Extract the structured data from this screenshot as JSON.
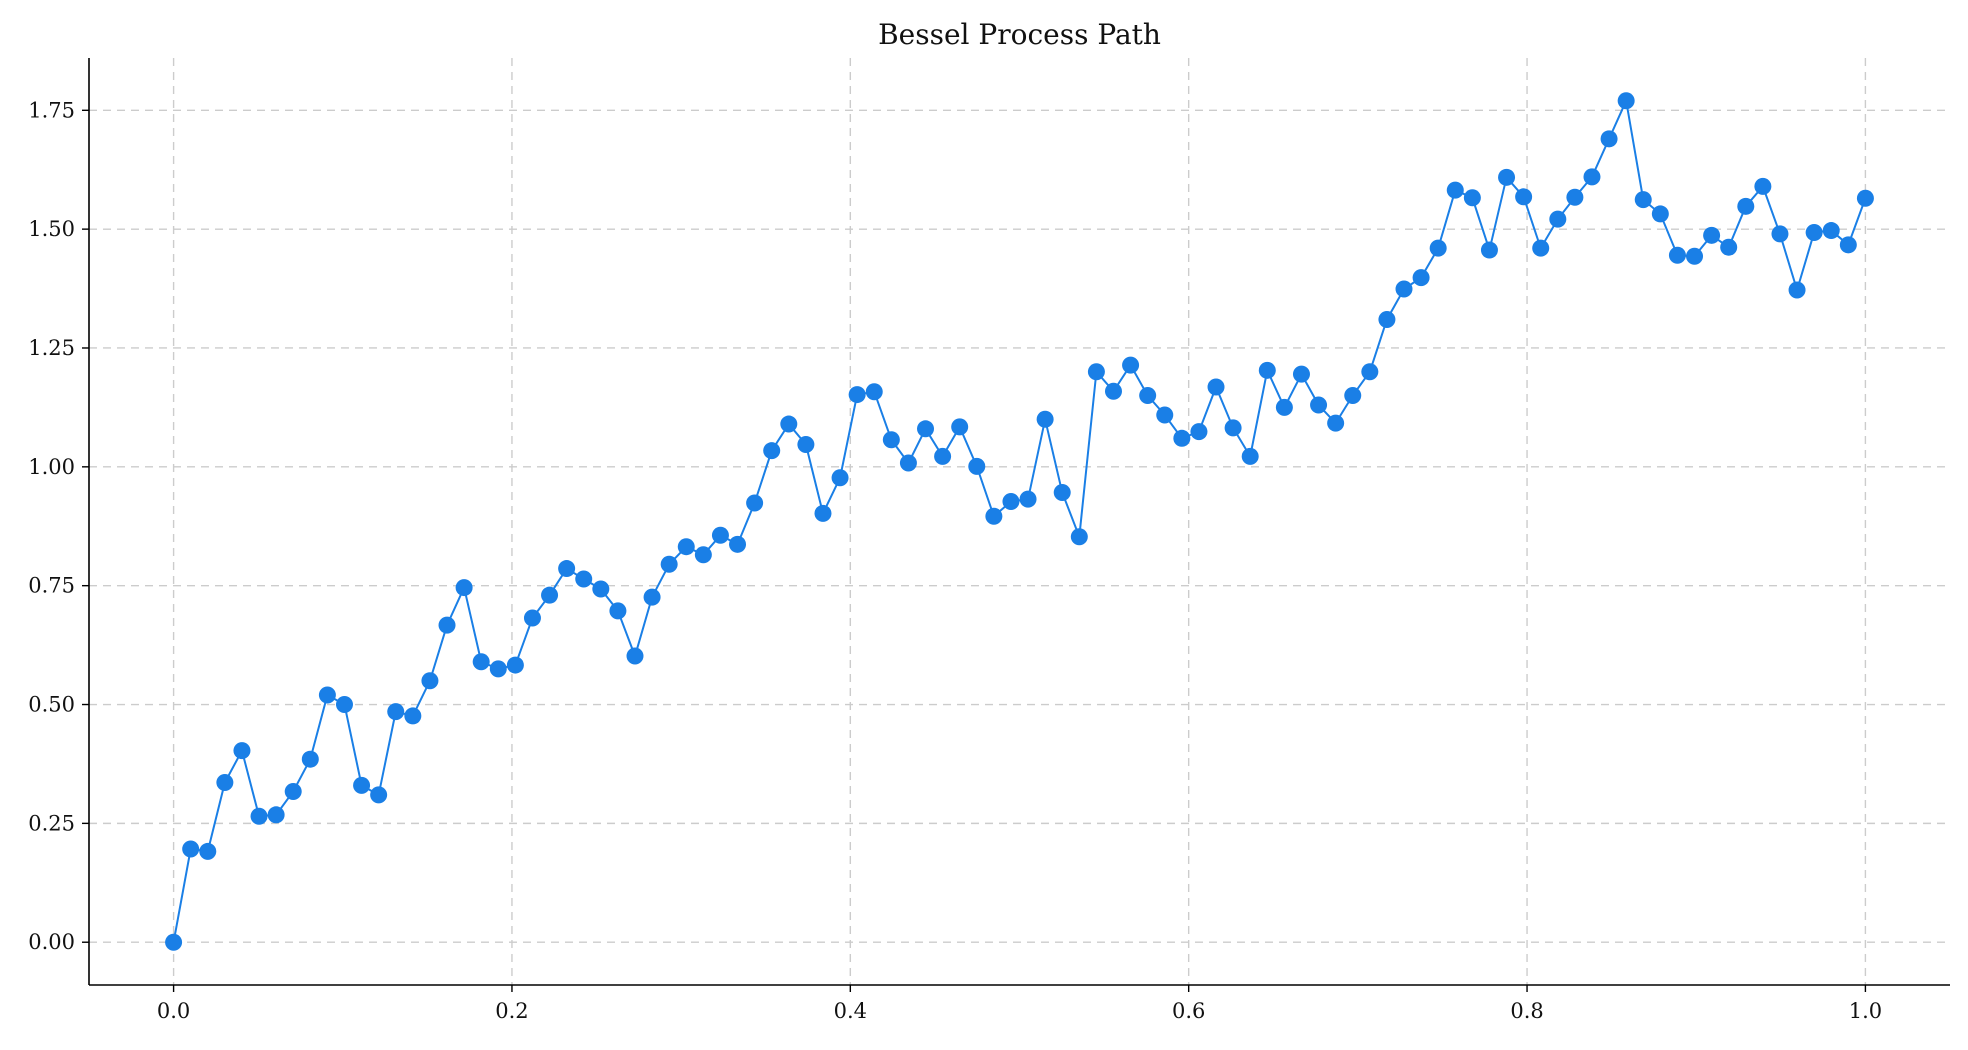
{
  "chart_data": {
    "type": "line",
    "title": "Bessel Process Path",
    "xlabel": "",
    "ylabel": "",
    "xlim": [
      -0.05,
      1.05
    ],
    "ylim": [
      -0.09,
      1.86
    ],
    "grid": true,
    "legend": "none",
    "x_ticks": [
      {
        "value": 0.0,
        "label": "0.0"
      },
      {
        "value": 0.2,
        "label": "0.2"
      },
      {
        "value": 0.4,
        "label": "0.4"
      },
      {
        "value": 0.6,
        "label": "0.6"
      },
      {
        "value": 0.8,
        "label": "0.8"
      },
      {
        "value": 1.0,
        "label": "1.0"
      }
    ],
    "y_ticks": [
      {
        "value": 0.0,
        "label": "0.00"
      },
      {
        "value": 0.25,
        "label": "0.25"
      },
      {
        "value": 0.5,
        "label": "0.50"
      },
      {
        "value": 0.75,
        "label": "0.75"
      },
      {
        "value": 1.0,
        "label": "1.00"
      },
      {
        "value": 1.25,
        "label": "1.25"
      },
      {
        "value": 1.5,
        "label": "1.50"
      },
      {
        "value": 1.75,
        "label": "1.75"
      }
    ],
    "series": [
      {
        "name": "Bessel Process Path",
        "color": "#1a7fe6",
        "marker": "circle",
        "x_start": 0,
        "x_end": 1,
        "values": [
          0.0,
          0.196,
          0.191,
          0.336,
          0.403,
          0.265,
          0.268,
          0.317,
          0.385,
          0.52,
          0.5,
          0.33,
          0.31,
          0.485,
          0.476,
          0.55,
          0.667,
          0.746,
          0.59,
          0.575,
          0.583,
          0.682,
          0.73,
          0.786,
          0.764,
          0.743,
          0.697,
          0.602,
          0.726,
          0.795,
          0.832,
          0.815,
          0.856,
          0.837,
          0.924,
          1.034,
          1.09,
          1.047,
          0.902,
          0.977,
          1.152,
          1.158,
          1.057,
          1.008,
          1.08,
          1.022,
          1.084,
          1.001,
          0.896,
          0.927,
          0.932,
          1.1,
          0.946,
          0.853,
          1.2,
          1.159,
          1.214,
          1.15,
          1.109,
          1.06,
          1.074,
          1.168,
          1.082,
          1.022,
          1.203,
          1.125,
          1.195,
          1.13,
          1.092,
          1.15,
          1.2,
          1.31,
          1.374,
          1.398,
          1.46,
          1.582,
          1.566,
          1.456,
          1.609,
          1.568,
          1.46,
          1.521,
          1.567,
          1.61,
          1.69,
          1.77,
          1.562,
          1.532,
          1.445,
          1.443,
          1.487,
          1.462,
          1.548,
          1.59,
          1.49,
          1.372,
          1.493,
          1.497,
          1.467,
          1.565
        ]
      }
    ]
  }
}
